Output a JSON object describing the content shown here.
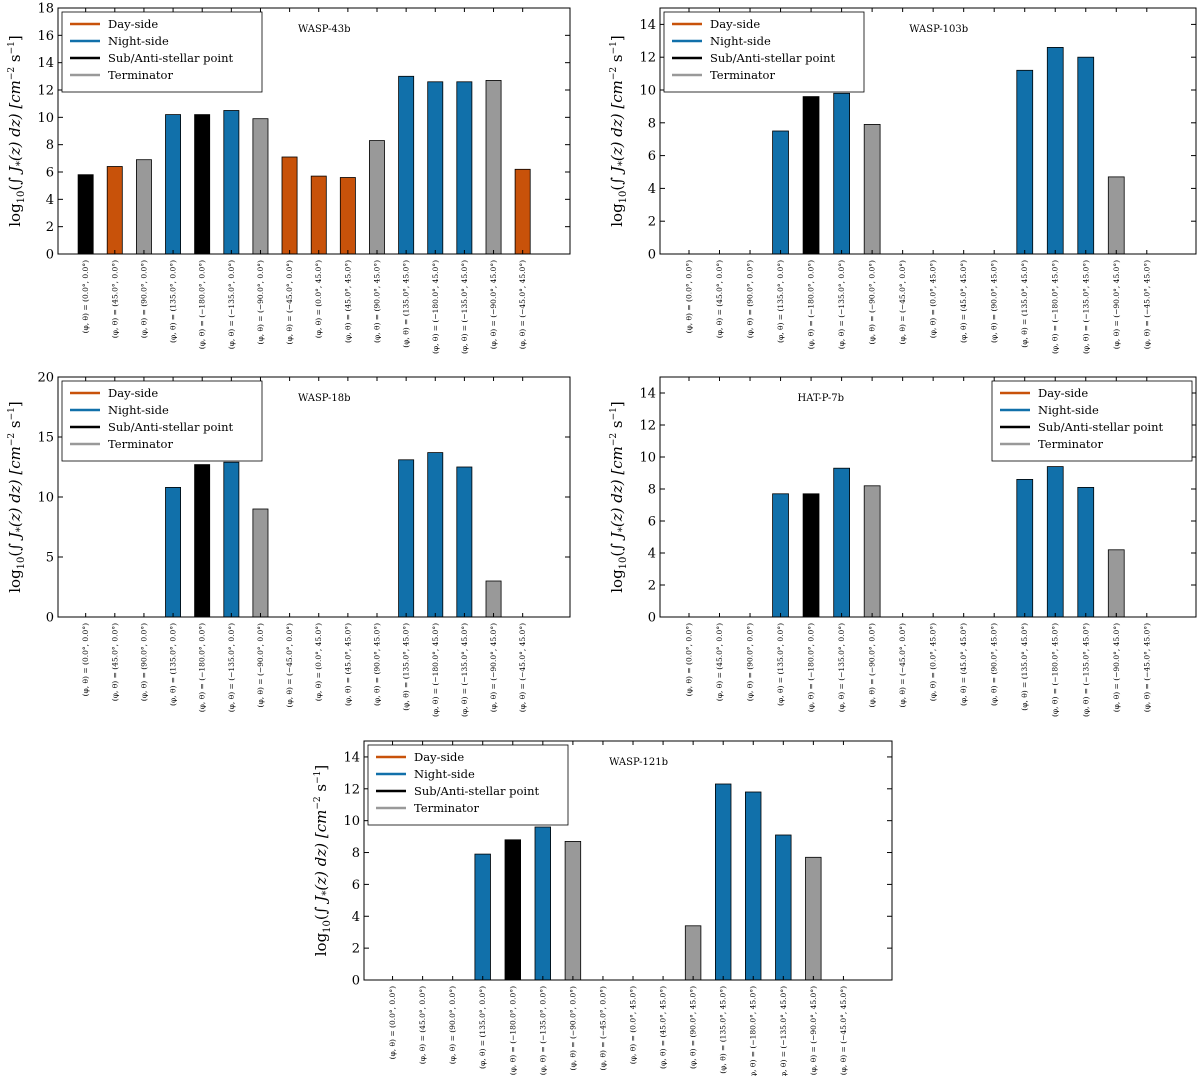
{
  "colors": {
    "day": "#c8520a",
    "night": "#1170aa",
    "substellar": "#000000",
    "terminator": "#999999"
  },
  "chart_data": [
    {
      "type": "bar",
      "title": "WASP-43b",
      "ylabel": "log10(∫ J*(z) dz)  [cm⁻² s⁻¹]",
      "ylim": [
        0,
        18
      ],
      "yticks": [
        0,
        2,
        4,
        6,
        8,
        10,
        12,
        14,
        16,
        18
      ],
      "legend_position": "top-left",
      "legend": [
        "Day-side",
        "Night-side",
        "Sub/Anti-stellar point",
        "Terminator"
      ],
      "categories": [
        "(φ, θ) = (0.0°, 0.0°)",
        "(φ, θ) = (45.0°, 0.0°)",
        "(φ, θ) = (90.0°, 0.0°)",
        "(φ, θ) = (135.0°, 0.0°)",
        "(φ, θ) = (−180.0°, 0.0°)",
        "(φ, θ) = (−135.0°, 0.0°)",
        "(φ, θ) = (−90.0°, 0.0°)",
        "(φ, θ) = (−45.0°, 0.0°)",
        "(φ, θ) = (0.0°, 45.0°)",
        "(φ, θ) = (45.0°, 45.0°)",
        "(φ, θ) = (90.0°, 45.0°)",
        "(φ, θ) = (135.0°, 45.0°)",
        "(φ, θ) = (−180.0°, 45.0°)",
        "(φ, θ) = (−135.0°, 45.0°)",
        "(φ, θ) = (−90.0°, 45.0°)",
        "(φ, θ) = (−45.0°, 45.0°)"
      ],
      "groups": [
        "substellar",
        "day",
        "terminator",
        "night",
        "substellar",
        "night",
        "terminator",
        "day",
        "day",
        "day",
        "terminator",
        "night",
        "night",
        "night",
        "terminator",
        "day"
      ],
      "values": [
        5.8,
        6.4,
        6.9,
        10.2,
        10.2,
        10.5,
        9.9,
        7.1,
        5.7,
        5.6,
        8.3,
        13.0,
        12.6,
        12.6,
        12.7,
        6.2
      ]
    },
    {
      "type": "bar",
      "title": "WASP-103b",
      "ylabel": "log10(∫ J*(z) dz)  [cm⁻² s⁻¹]",
      "ylim": [
        0,
        15
      ],
      "yticks": [
        0,
        2,
        4,
        6,
        8,
        10,
        12,
        14
      ],
      "legend_position": "top-left",
      "legend": [
        "Day-side",
        "Night-side",
        "Sub/Anti-stellar point",
        "Terminator"
      ],
      "categories": [
        "(φ, θ) = (0.0°, 0.0°)",
        "(φ, θ) = (45.0°, 0.0°)",
        "(φ, θ) = (90.0°, 0.0°)",
        "(φ, θ) = (135.0°, 0.0°)",
        "(φ, θ) = (−180.0°, 0.0°)",
        "(φ, θ) = (−135.0°, 0.0°)",
        "(φ, θ) = (−90.0°, 0.0°)",
        "(φ, θ) = (−45.0°, 0.0°)",
        "(φ, θ) = (0.0°, 45.0°)",
        "(φ, θ) = (45.0°, 45.0°)",
        "(φ, θ) = (90.0°, 45.0°)",
        "(φ, θ) = (135.0°, 45.0°)",
        "(φ, θ) = (−180.0°, 45.0°)",
        "(φ, θ) = (−135.0°, 45.0°)",
        "(φ, θ) = (−90.0°, 45.0°)",
        "(φ, θ) = (−45.0°, 45.0°)"
      ],
      "groups": [
        "substellar",
        "day",
        "terminator",
        "night",
        "substellar",
        "night",
        "terminator",
        "day",
        "day",
        "day",
        "terminator",
        "night",
        "night",
        "night",
        "terminator",
        "day"
      ],
      "values": [
        0,
        0,
        0,
        7.5,
        9.6,
        9.8,
        7.9,
        0,
        0,
        0,
        0,
        11.2,
        12.6,
        12.0,
        4.7,
        0
      ]
    },
    {
      "type": "bar",
      "title": "WASP-18b",
      "ylabel": "log10(∫ J*(z) dz)  [cm⁻² s⁻¹]",
      "ylim": [
        0,
        20
      ],
      "yticks": [
        0,
        5,
        10,
        15,
        20
      ],
      "legend_position": "top-left",
      "legend": [
        "Day-side",
        "Night-side",
        "Sub/Anti-stellar point",
        "Terminator"
      ],
      "categories": [
        "(φ, θ) = (0.0°, 0.0°)",
        "(φ, θ) = (45.0°, 0.0°)",
        "(φ, θ) = (90.0°, 0.0°)",
        "(φ, θ) = (135.0°, 0.0°)",
        "(φ, θ) = (−180.0°, 0.0°)",
        "(φ, θ) = (−135.0°, 0.0°)",
        "(φ, θ) = (−90.0°, 0.0°)",
        "(φ, θ) = (−45.0°, 0.0°)",
        "(φ, θ) = (0.0°, 45.0°)",
        "(φ, θ) = (45.0°, 45.0°)",
        "(φ, θ) = (90.0°, 45.0°)",
        "(φ, θ) = (135.0°, 45.0°)",
        "(φ, θ) = (−180.0°, 45.0°)",
        "(φ, θ) = (−135.0°, 45.0°)",
        "(φ, θ) = (−90.0°, 45.0°)",
        "(φ, θ) = (−45.0°, 45.0°)"
      ],
      "groups": [
        "substellar",
        "day",
        "terminator",
        "night",
        "substellar",
        "night",
        "terminator",
        "day",
        "day",
        "day",
        "terminator",
        "night",
        "night",
        "night",
        "terminator",
        "day"
      ],
      "values": [
        0,
        0,
        0,
        10.8,
        12.7,
        12.9,
        9.0,
        0,
        0,
        0,
        0,
        13.1,
        13.7,
        12.5,
        3.0,
        0
      ]
    },
    {
      "type": "bar",
      "title": "HAT-P-7b",
      "ylabel": "log10(∫ J*(z) dz)  [cm⁻² s⁻¹]",
      "ylim": [
        0,
        15
      ],
      "yticks": [
        0,
        2,
        4,
        6,
        8,
        10,
        12,
        14
      ],
      "legend_position": "top-right",
      "legend": [
        "Day-side",
        "Night-side",
        "Sub/Anti-stellar point",
        "Terminator"
      ],
      "categories": [
        "(φ, θ) = (0.0°, 0.0°)",
        "(φ, θ) = (45.0°, 0.0°)",
        "(φ, θ) = (90.0°, 0.0°)",
        "(φ, θ) = (135.0°, 0.0°)",
        "(φ, θ) = (−180.0°, 0.0°)",
        "(φ, θ) = (−135.0°, 0.0°)",
        "(φ, θ) = (−90.0°, 0.0°)",
        "(φ, θ) = (−45.0°, 0.0°)",
        "(φ, θ) = (0.0°, 45.0°)",
        "(φ, θ) = (45.0°, 45.0°)",
        "(φ, θ) = (90.0°, 45.0°)",
        "(φ, θ) = (135.0°, 45.0°)",
        "(φ, θ) = (−180.0°, 45.0°)",
        "(φ, θ) = (−135.0°, 45.0°)",
        "(φ, θ) = (−90.0°, 45.0°)",
        "(φ, θ) = (−45.0°, 45.0°)"
      ],
      "groups": [
        "substellar",
        "day",
        "terminator",
        "night",
        "substellar",
        "night",
        "terminator",
        "day",
        "day",
        "day",
        "terminator",
        "night",
        "night",
        "night",
        "terminator",
        "day"
      ],
      "values": [
        0,
        0,
        0,
        7.7,
        7.7,
        9.3,
        8.2,
        0,
        0,
        0,
        0,
        8.6,
        9.4,
        8.1,
        4.2,
        0
      ]
    },
    {
      "type": "bar",
      "title": "WASP-121b",
      "ylabel": "log10(∫ J*(z) dz)  [cm⁻² s⁻¹]",
      "ylim": [
        0,
        15
      ],
      "yticks": [
        0,
        2,
        4,
        6,
        8,
        10,
        12,
        14
      ],
      "legend_position": "top-left",
      "legend": [
        "Day-side",
        "Night-side",
        "Sub/Anti-stellar point",
        "Terminator"
      ],
      "categories": [
        "(φ, θ) = (0.0°, 0.0°)",
        "(φ, θ) = (45.0°, 0.0°)",
        "(φ, θ) = (90.0°, 0.0°)",
        "(φ, θ) = (135.0°, 0.0°)",
        "(φ, θ) = (−180.0°, 0.0°)",
        "(φ, θ) = (−135.0°, 0.0°)",
        "(φ, θ) = (−90.0°, 0.0°)",
        "(φ, θ) = (−45.0°, 0.0°)",
        "(φ, θ) = (0.0°, 45.0°)",
        "(φ, θ) = (45.0°, 45.0°)",
        "(φ, θ) = (90.0°, 45.0°)",
        "(φ, θ) = (135.0°, 45.0°)",
        "(φ, θ) = (−180.0°, 45.0°)",
        "(φ, θ) = (−135.0°, 45.0°)",
        "(φ, θ) = (−90.0°, 45.0°)",
        "(φ, θ) = (−45.0°, 45.0°)"
      ],
      "groups": [
        "substellar",
        "day",
        "terminator",
        "night",
        "substellar",
        "night",
        "terminator",
        "day",
        "day",
        "day",
        "terminator",
        "night",
        "night",
        "night",
        "terminator",
        "day"
      ],
      "values": [
        0,
        0,
        0,
        7.9,
        8.8,
        9.6,
        8.7,
        0,
        0,
        0,
        3.4,
        12.3,
        11.8,
        9.1,
        7.7,
        0
      ]
    }
  ]
}
